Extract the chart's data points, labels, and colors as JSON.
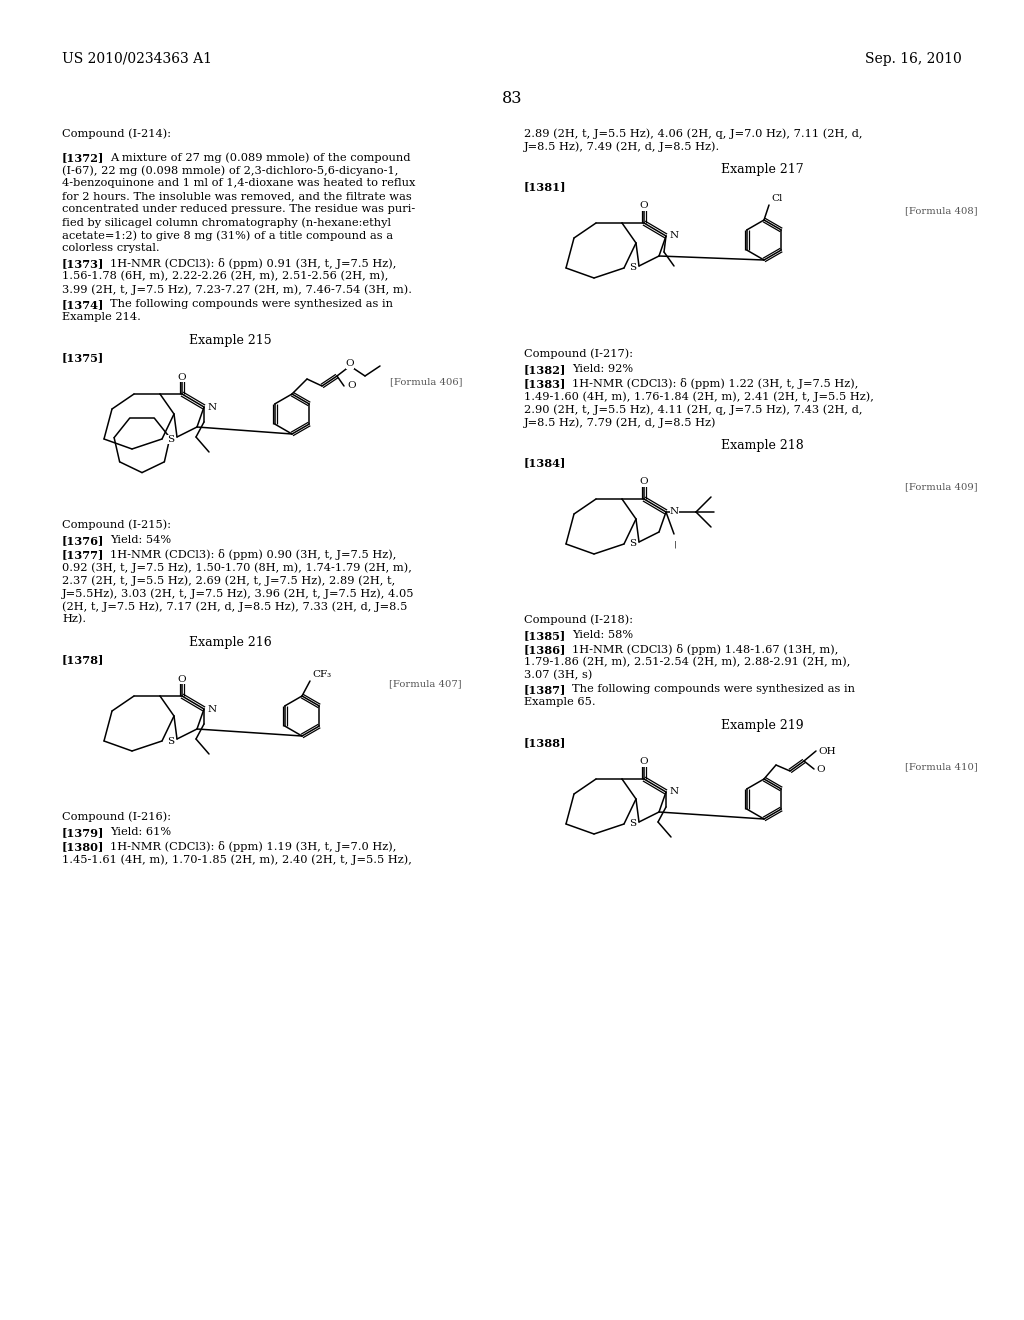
{
  "bg": "#ffffff",
  "header_left": "US 2010/0234363 A1",
  "header_right": "Sep. 16, 2010",
  "page_num": "83"
}
